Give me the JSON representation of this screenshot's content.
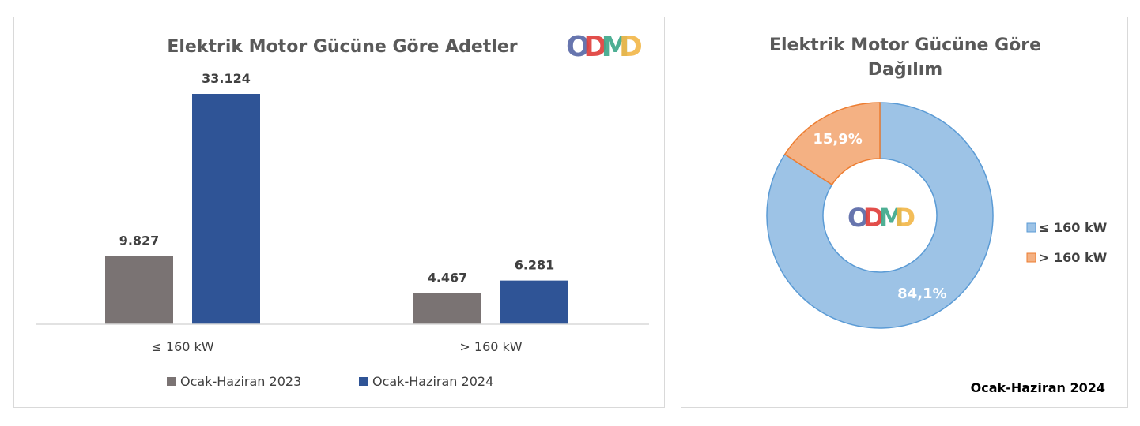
{
  "logo": {
    "text": "ODMD",
    "letters": [
      {
        "char": "O",
        "color": "#5b6aa8"
      },
      {
        "char": "D",
        "color": "#e0403c"
      },
      {
        "char": "M",
        "color": "#3fa98b"
      },
      {
        "char": "D",
        "color": "#f2b84b"
      }
    ]
  },
  "colors": {
    "series_2023": "#7a7373",
    "series_2024": "#2f5496",
    "slice_small": "#9dc3e6",
    "slice_small_stroke": "#5b9bd5",
    "slice_large": "#f4b183",
    "slice_large_stroke": "#ed7d31"
  },
  "chart_data": [
    {
      "type": "bar",
      "title": "Elektrik Motor Gücüne Göre Adetler",
      "categories": [
        "≤ 160 kW",
        "> 160 kW"
      ],
      "series": [
        {
          "name": "Ocak-Haziran 2023",
          "values": [
            9827,
            4467
          ],
          "labels": [
            "9.827",
            "4.467"
          ]
        },
        {
          "name": "Ocak-Haziran 2024",
          "values": [
            33124,
            6281
          ],
          "labels": [
            "33.124",
            "6.281"
          ]
        }
      ],
      "xlabel": "",
      "ylabel": "",
      "ylim": [
        0,
        33124
      ],
      "grid": false,
      "legend": "bottom"
    },
    {
      "type": "pie",
      "title_lines": [
        "Elektrik Motor Gücüne Göre",
        "Dağılım"
      ],
      "slices": [
        {
          "name": "≤ 160 kW",
          "value": 84.1,
          "label": "84,1%"
        },
        {
          "name": "> 160 kW",
          "value": 15.9,
          "label": "15,9%"
        }
      ],
      "donut": true,
      "legend": "right",
      "period": "Ocak-Haziran 2024"
    }
  ]
}
